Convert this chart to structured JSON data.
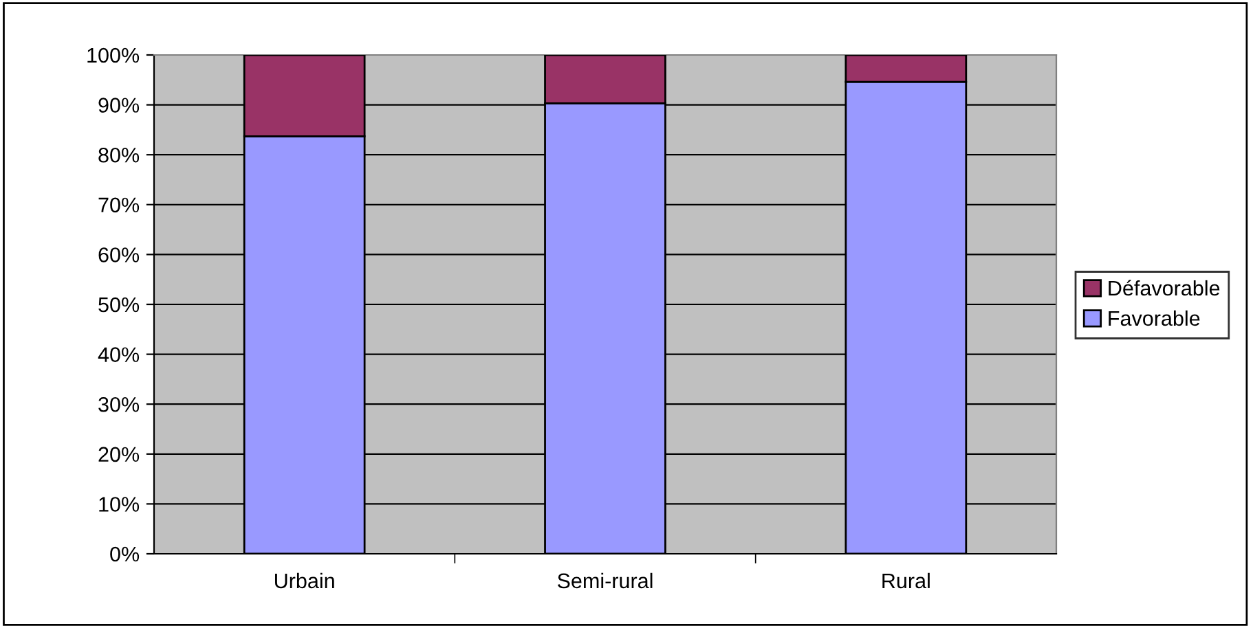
{
  "chart_data": {
    "type": "bar",
    "stacked": true,
    "categories": [
      "Urbain",
      "Semi-rural",
      "Rural"
    ],
    "series": [
      {
        "name": "Favorable",
        "color": "#9999ff",
        "values": [
          83.7,
          90.3,
          94.6
        ]
      },
      {
        "name": "Défavorable",
        "color": "#993366",
        "values": [
          16.3,
          9.7,
          5.4
        ]
      }
    ],
    "ylim": [
      0,
      100
    ],
    "yticks": [
      {
        "value": 0,
        "label": "0%"
      },
      {
        "value": 10,
        "label": "10%"
      },
      {
        "value": 20,
        "label": "20%"
      },
      {
        "value": 30,
        "label": "30%"
      },
      {
        "value": 40,
        "label": "40%"
      },
      {
        "value": 50,
        "label": "50%"
      },
      {
        "value": 60,
        "label": "60%"
      },
      {
        "value": 70,
        "label": "70%"
      },
      {
        "value": 80,
        "label": "80%"
      },
      {
        "value": 90,
        "label": "90%"
      },
      {
        "value": 100,
        "label": "100%"
      }
    ],
    "grid": "y",
    "legend": "right"
  }
}
